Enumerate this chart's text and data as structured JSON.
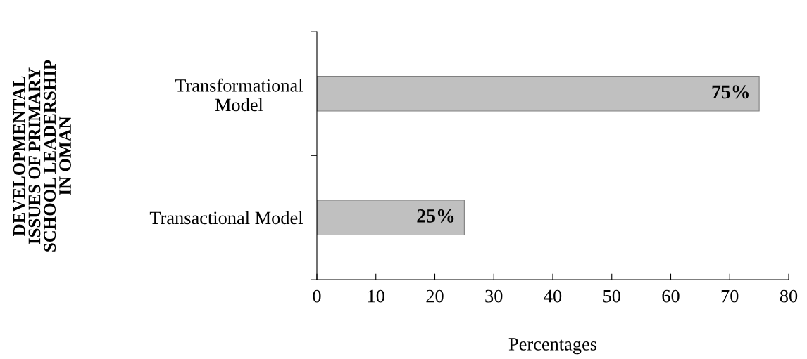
{
  "chart_data": {
    "type": "bar",
    "orientation": "horizontal",
    "categories": [
      "Transformational\nModel",
      "Transactional Model"
    ],
    "values": [
      75,
      25
    ],
    "value_labels": [
      "75%",
      "25%"
    ],
    "color": "#c0c0c0",
    "xlabel": "Percentages",
    "ylabel": "DEVELOPMENTAL\nISSUES OF PRIMARY\nSCHOOL LEADERSHIP\nIN OMAN",
    "xlim": [
      0,
      80
    ],
    "xticks": [
      0,
      10,
      20,
      30,
      40,
      50,
      60,
      70,
      80
    ],
    "grid": false,
    "legend": false
  }
}
